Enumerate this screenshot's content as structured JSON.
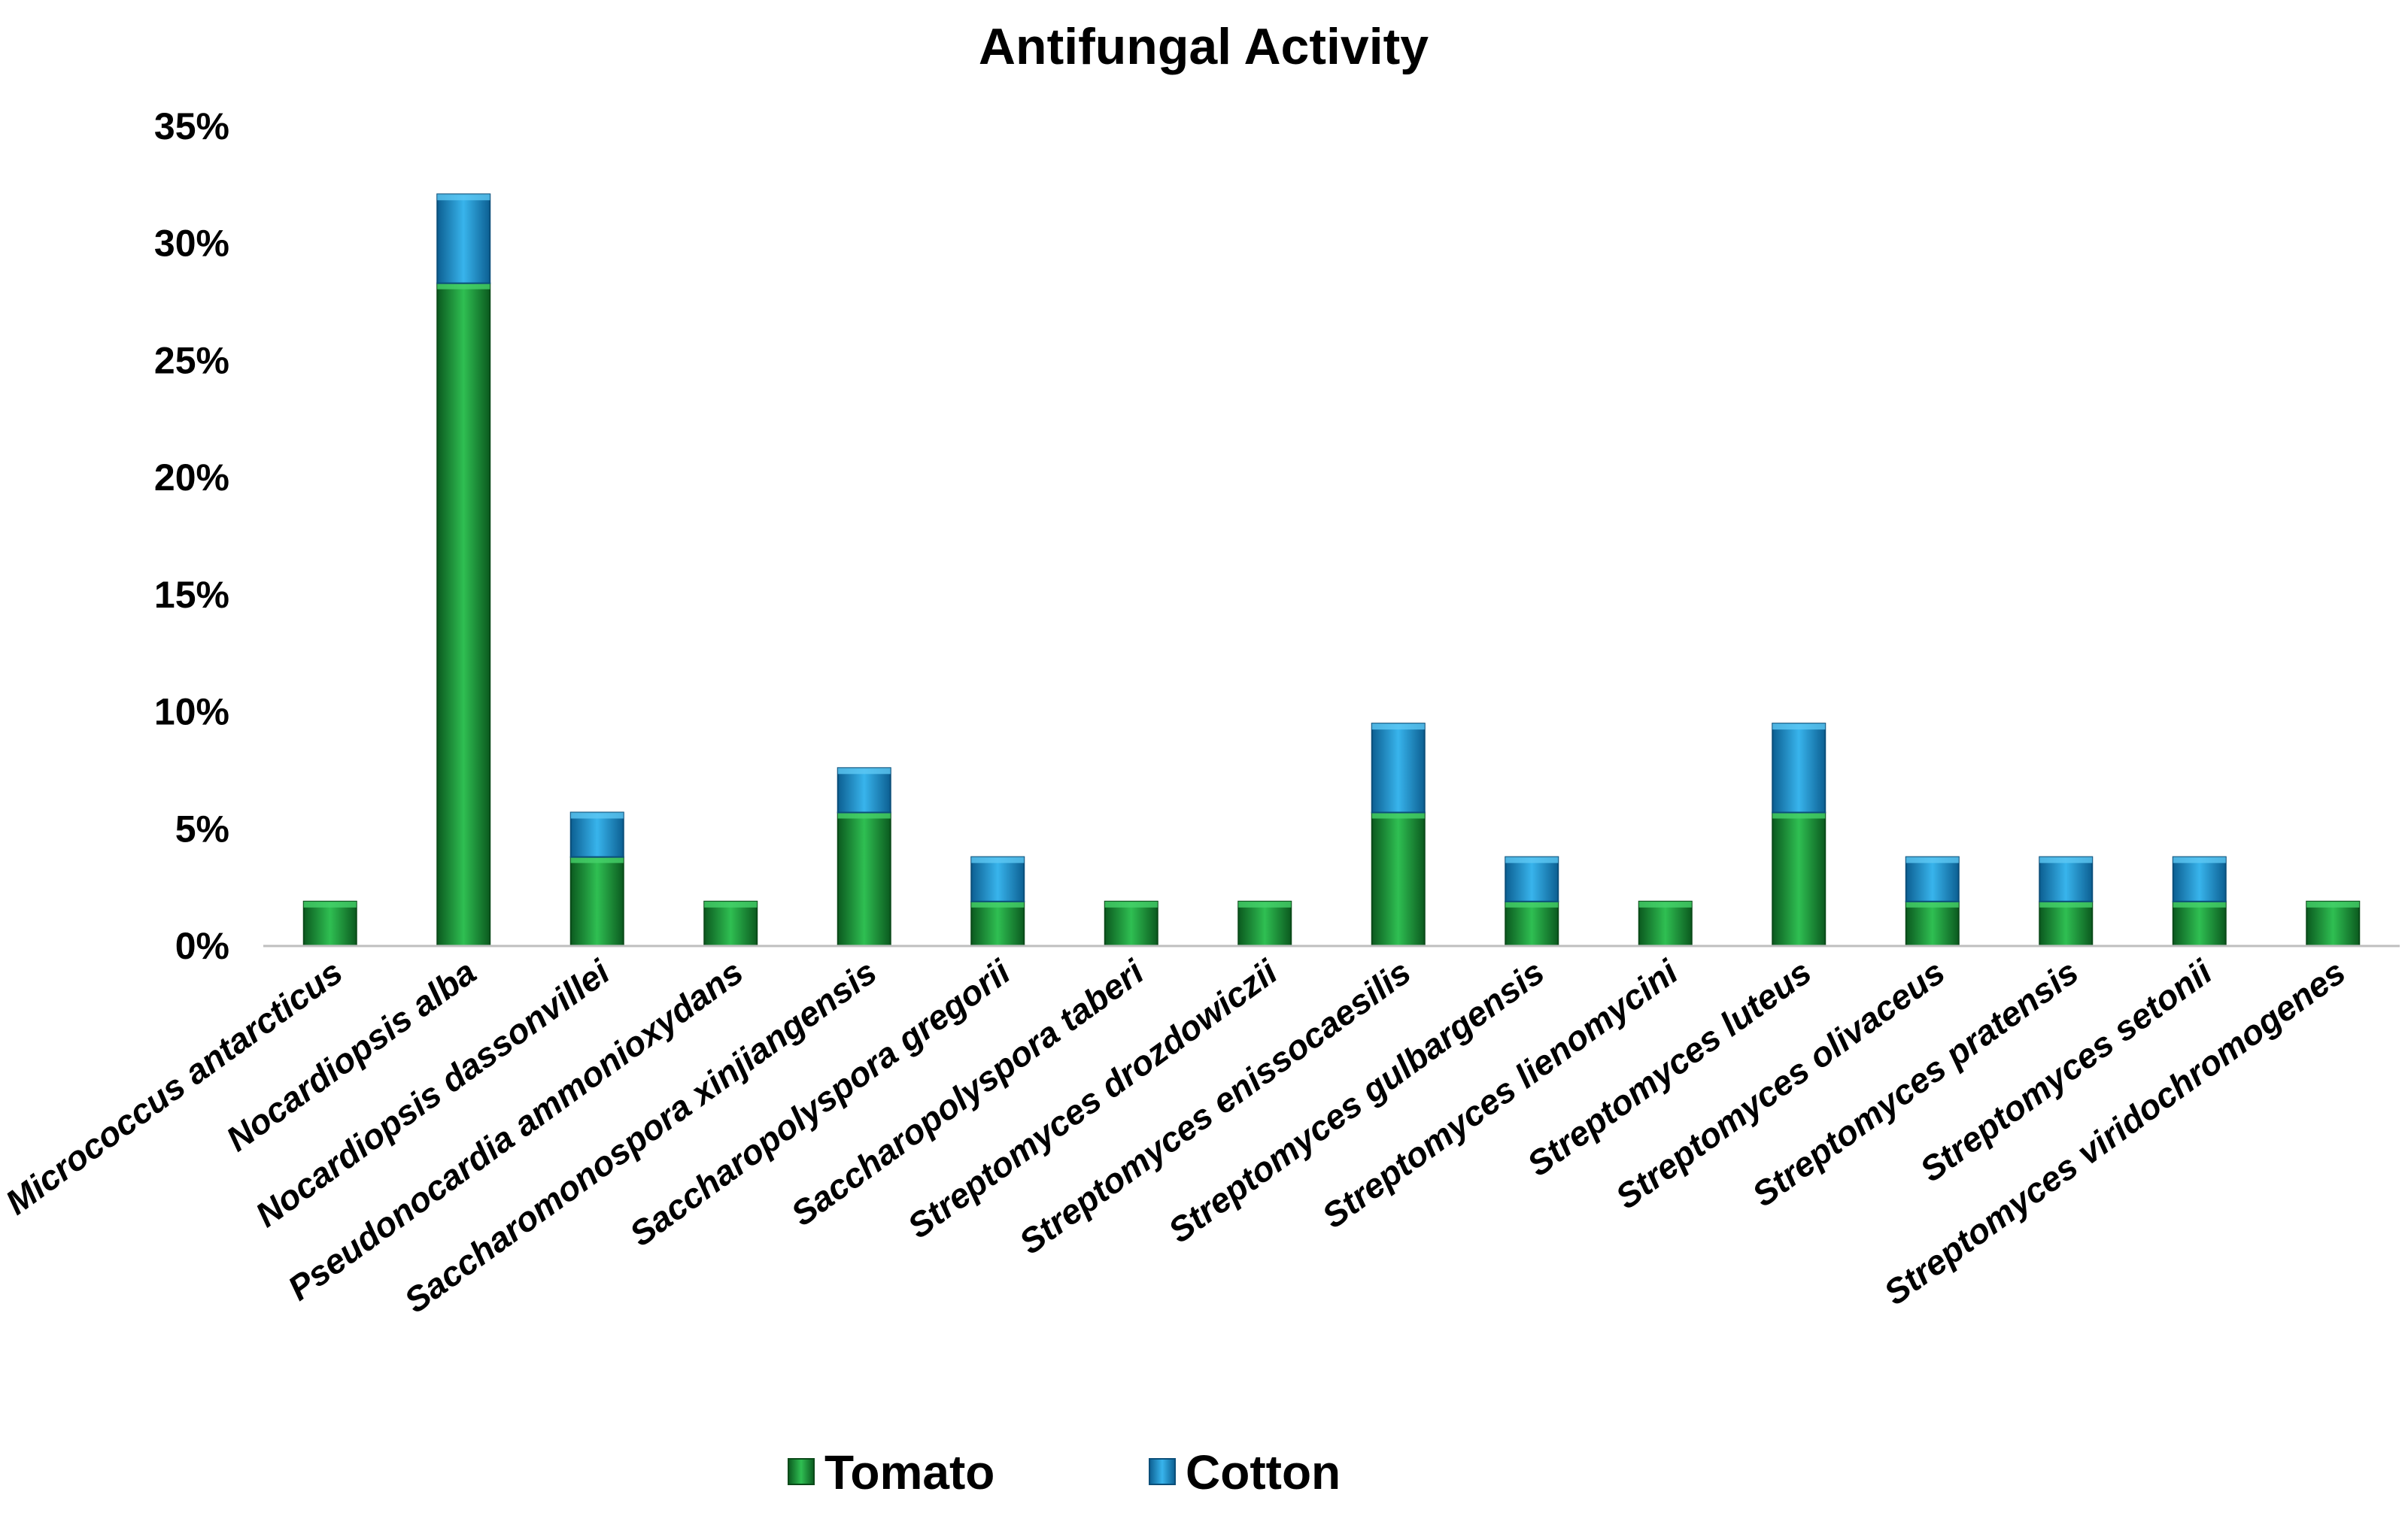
{
  "chart_data": {
    "type": "bar",
    "stacked": true,
    "title": "Antifungal Activity",
    "xlabel": "",
    "ylabel": "",
    "ylim": [
      0,
      35
    ],
    "yticks": [
      0,
      5,
      10,
      15,
      20,
      25,
      30,
      35
    ],
    "ytick_labels": [
      "0%",
      "5%",
      "10%",
      "15%",
      "20%",
      "25%",
      "30%",
      "35%"
    ],
    "grid": false,
    "legend_position": "bottom",
    "categories": [
      "Micrococcus antarcticus",
      "Nocardiopsis alba",
      "Nocardiopsis dassonvillei",
      "Pseudonocardia ammonioxydans",
      "Saccharomonospora xinjiangensis",
      "Saccharopolyspora gregorii",
      "Saccharopolyspora taberi",
      "Streptomyces drozdowiczii",
      "Streptomyces enissocaesilis",
      "Streptomyces gulbargensis",
      "Streptomyces lienomycini",
      "Streptomyces luteus",
      "Streptomyces olivaceus",
      "Streptomyces pratensis",
      "Streptomyces setonii",
      "Streptomyces viridochromogenes"
    ],
    "series": [
      {
        "name": "Tomato",
        "color": "#1f9e3c",
        "values": [
          1.9,
          28.3,
          3.8,
          1.9,
          5.7,
          1.9,
          1.9,
          1.9,
          5.7,
          1.9,
          1.9,
          5.7,
          1.9,
          1.9,
          1.9,
          1.9
        ]
      },
      {
        "name": "Cotton",
        "color": "#1e9ad6",
        "values": [
          0,
          3.8,
          1.9,
          0,
          1.9,
          1.9,
          0,
          0,
          3.8,
          1.9,
          0,
          3.8,
          1.9,
          1.9,
          1.9,
          0
        ]
      }
    ]
  }
}
